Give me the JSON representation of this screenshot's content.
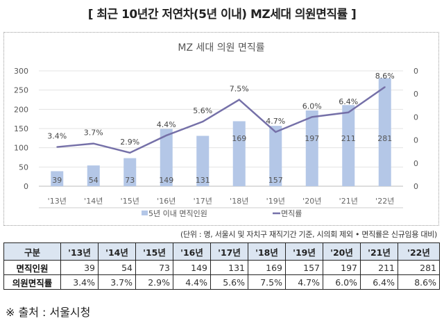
{
  "title": "[ 최근 10년간 저연차(5년 이내) MZ세대 의원면직률 ]",
  "chart_data": {
    "type": "bar+line",
    "title": "MZ 세대 의원 면직률",
    "categories": [
      "'13년",
      "'14년",
      "'15년",
      "'16년",
      "'17년",
      "'18년",
      "'19년",
      "'20년",
      "'21년",
      "'22년"
    ],
    "series": [
      {
        "name": "5년 이내 면직인원",
        "type": "bar",
        "axis": "left",
        "color": "#b4c7e7",
        "values": [
          39,
          54,
          73,
          149,
          131,
          169,
          157,
          197,
          211,
          281
        ],
        "labels": [
          "39",
          "54",
          "73",
          "149",
          "131",
          "169",
          "157",
          "197",
          "211",
          "281"
        ]
      },
      {
        "name": "면직률",
        "type": "line",
        "axis": "right",
        "color": "#7570a8",
        "values": [
          3.4,
          3.7,
          2.9,
          4.4,
          5.6,
          7.5,
          4.7,
          6.0,
          6.4,
          8.6
        ],
        "labels": [
          "3.4%",
          "3.7%",
          "2.9%",
          "4.4%",
          "5.6%",
          "7.5%",
          "4.7%",
          "6.0%",
          "6.4%",
          "8.6%"
        ]
      }
    ],
    "left_axis": {
      "ylim": [
        0,
        300
      ],
      "ticks": [
        "0",
        "50",
        "100",
        "150",
        "200",
        "250",
        "300"
      ]
    },
    "right_axis": {
      "ylim": [
        0,
        10
      ],
      "ticks": [
        "0",
        "0",
        "0",
        "0",
        "0",
        "0"
      ]
    },
    "grid": true,
    "legend": "bottom"
  },
  "note": "(단위 : 명, 서울시 및 자치구 재직기간 기준, 시의회 제외 • 면직률은 신규임용 대비)",
  "table": {
    "header": [
      "구분",
      "'13년",
      "'14년",
      "'15년",
      "'16년",
      "'17년",
      "'18년",
      "'19년",
      "'20년",
      "'21년",
      "'22년"
    ],
    "rows": [
      {
        "label": "면직인원",
        "cells": [
          "39",
          "54",
          "73",
          "149",
          "131",
          "169",
          "157",
          "197",
          "211",
          "281"
        ]
      },
      {
        "label": "의원면직률",
        "cells": [
          "3.4%",
          "3.7%",
          "2.9%",
          "4.4%",
          "5.6%",
          "7.5%",
          "4.7%",
          "6.0%",
          "6.4%",
          "8.6%"
        ]
      }
    ]
  },
  "source": "※ 출처 : 서울시청"
}
